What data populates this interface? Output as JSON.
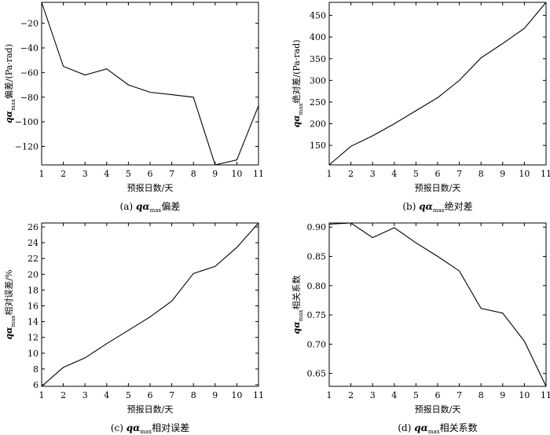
{
  "chart_data": [
    {
      "type": "line",
      "id": "a",
      "x": [
        1,
        2,
        3,
        4,
        5,
        6,
        7,
        8,
        9,
        10,
        11
      ],
      "values": [
        -3,
        -55,
        -62,
        -57,
        -70,
        -76,
        -78,
        -80,
        -135,
        -131,
        -87
      ],
      "xlim": [
        1,
        11
      ],
      "ylim": [
        -135,
        -3
      ],
      "xticks": [
        1,
        2,
        3,
        4,
        5,
        6,
        7,
        8,
        9,
        10,
        11
      ],
      "yticks": [
        -20,
        -40,
        -60,
        -80,
        -100,
        -120
      ],
      "xlabel": "预报日数/天",
      "ylabel_var": "qα",
      "ylabel_sub": "max",
      "ylabel_rest": "偏差/(Pa·rad)",
      "caption_prefix": "(a)",
      "caption_var": "qα",
      "caption_sub": "max",
      "caption_rest": "偏差"
    },
    {
      "type": "line",
      "id": "b",
      "x": [
        1,
        2,
        3,
        4,
        5,
        6,
        7,
        8,
        9,
        10,
        11
      ],
      "values": [
        105,
        148,
        172,
        200,
        230,
        260,
        300,
        352,
        385,
        420,
        480
      ],
      "xlim": [
        1,
        11
      ],
      "ylim": [
        105,
        480
      ],
      "xticks": [
        1,
        2,
        3,
        4,
        5,
        6,
        7,
        8,
        9,
        10,
        11
      ],
      "yticks": [
        150,
        200,
        250,
        300,
        350,
        400,
        450
      ],
      "xlabel": "预报日数/天",
      "ylabel_var": "qα",
      "ylabel_sub": "max",
      "ylabel_rest": "绝对差/(Pa·rad)",
      "caption_prefix": "(b)",
      "caption_var": "qα",
      "caption_sub": "max",
      "caption_rest": "绝对差"
    },
    {
      "type": "line",
      "id": "c",
      "x": [
        1,
        2,
        3,
        4,
        5,
        6,
        7,
        8,
        9,
        10,
        11
      ],
      "values": [
        5.8,
        8.2,
        9.4,
        11.2,
        12.9,
        14.6,
        16.6,
        20.1,
        21.0,
        23.4,
        26.5
      ],
      "xlim": [
        1,
        11
      ],
      "ylim": [
        5.8,
        26.5
      ],
      "xticks": [
        1,
        2,
        3,
        4,
        5,
        6,
        7,
        8,
        9,
        10,
        11
      ],
      "yticks": [
        6,
        8,
        10,
        12,
        14,
        16,
        18,
        20,
        22,
        24,
        26
      ],
      "xlabel": "预报日数/天",
      "ylabel_var": "qα",
      "ylabel_sub": "max",
      "ylabel_rest": "相对误差/%",
      "caption_prefix": "(c)",
      "caption_var": "qα",
      "caption_sub": "max",
      "caption_rest": "相对误差"
    },
    {
      "type": "line",
      "id": "d",
      "x": [
        1,
        2,
        3,
        4,
        5,
        6,
        7,
        8,
        9,
        10,
        11
      ],
      "values": [
        0.905,
        0.907,
        0.882,
        0.899,
        0.873,
        0.85,
        0.825,
        0.761,
        0.753,
        0.705,
        0.628
      ],
      "xlim": [
        1,
        11
      ],
      "ylim": [
        0.628,
        0.907
      ],
      "xticks": [
        1,
        2,
        3,
        4,
        5,
        6,
        7,
        8,
        9,
        10,
        11
      ],
      "yticks": [
        0.65,
        0.7,
        0.75,
        0.8,
        0.85,
        0.9
      ],
      "ytick_decimals": 2,
      "xlabel": "预报日数/天",
      "ylabel_var": "qα",
      "ylabel_sub": "max",
      "ylabel_rest": "相关系数",
      "caption_prefix": "(d)",
      "caption_var": "qα",
      "caption_sub": "max",
      "caption_rest": "相关系数"
    }
  ]
}
